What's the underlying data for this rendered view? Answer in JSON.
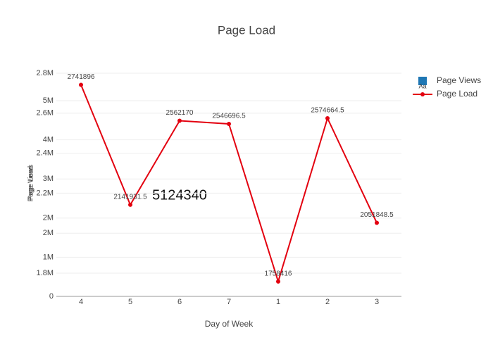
{
  "chart_data": {
    "type": "line",
    "title": "Page Load",
    "x_label": "Day of Week",
    "y_label": "Page Views",
    "y2_label": "Page Load",
    "categories": [
      "4",
      "5",
      "6",
      "7",
      "1",
      "2",
      "3"
    ],
    "series": [
      {
        "name": "Page Views",
        "color": "#1f77b4",
        "legend_symbol": "Aa"
      },
      {
        "name": "Page Load",
        "color": "#e3000f",
        "axis": "y2",
        "values": [
          2741896,
          2141931.5,
          2562170,
          2546696.5,
          1758416,
          2574664.5,
          2051848.5
        ]
      }
    ],
    "annotations": [
      {
        "text": "5124340"
      }
    ],
    "ylim": [
      0,
      5957000
    ],
    "yticks": [
      0,
      {
        "value": 1000000,
        "label": "1M"
      },
      {
        "value": 2000000,
        "label": "2M"
      },
      {
        "value": 3000000,
        "label": "3M"
      },
      {
        "value": 4000000,
        "label": "4M"
      },
      {
        "value": 5000000,
        "label": "5M"
      }
    ],
    "y2lim": [
      1684000,
      2850000
    ],
    "y2ticks": [
      {
        "value": 1800000,
        "label": "1.8M"
      },
      {
        "value": 2000000,
        "label": "2M"
      },
      {
        "value": 2200000,
        "label": "2.2M"
      },
      {
        "value": 2400000,
        "label": "2.4M"
      },
      {
        "value": 2600000,
        "label": "2.6M"
      },
      {
        "value": 2800000,
        "label": "2.8M"
      }
    ],
    "grid": true,
    "legend": "right"
  }
}
